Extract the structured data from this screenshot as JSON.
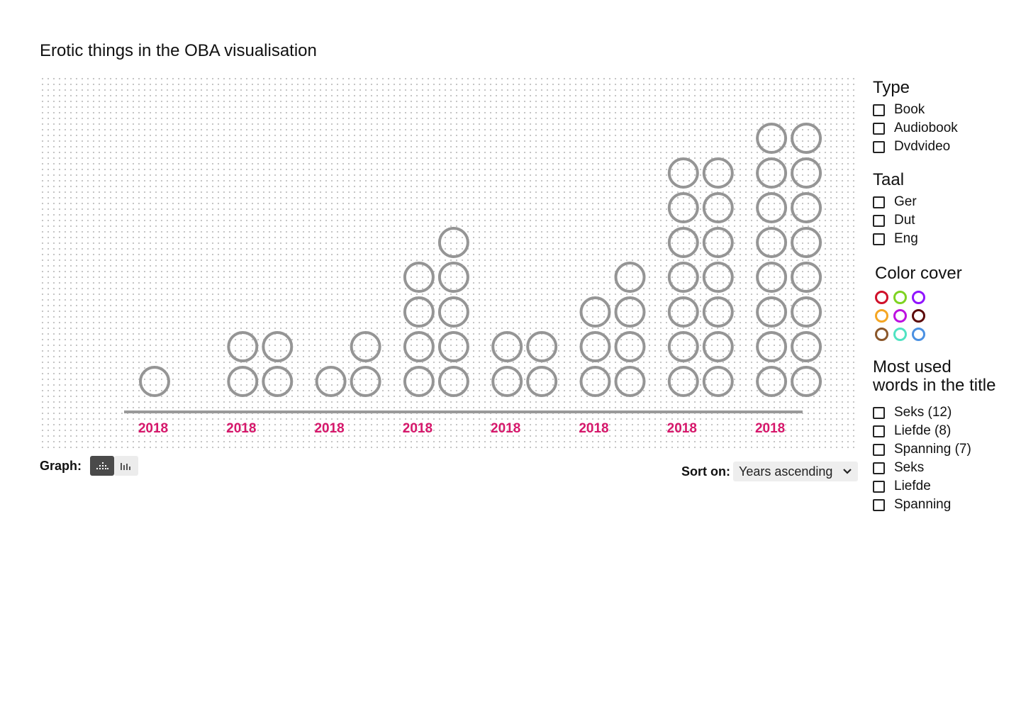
{
  "page": {
    "title": "Erotic things in the OBA visualisation"
  },
  "chart_data": {
    "type": "scatter",
    "description_note": "",
    "categories": [
      "2018",
      "2018",
      "2018",
      "2018",
      "2018",
      "2018",
      "2018",
      "2018"
    ],
    "series": [
      {
        "values": [
          1,
          2,
          1,
          4,
          2,
          3,
          7,
          8
        ]
      },
      {
        "values": [
          0,
          2,
          2,
          5,
          2,
          4,
          7,
          8
        ]
      }
    ],
    "marker_color": "#959595",
    "axis_color": "#999999",
    "tick_label_color": "#d6176b",
    "grid": true
  },
  "controls": {
    "graph_label": "Graph:",
    "graph_modes": [
      {
        "icon": "dot-plot-icon",
        "active": true
      },
      {
        "icon": "bar-chart-icon",
        "active": false
      }
    ],
    "sort_label": "Sort on:",
    "sort_value": "Years ascending"
  },
  "filters": {
    "type": {
      "title": "Type",
      "items": [
        "Book",
        "Audiobook",
        "Dvdvideo"
      ]
    },
    "taal": {
      "title": "Taal",
      "items": [
        "Ger",
        "Dut",
        "Eng"
      ]
    },
    "color_cover": {
      "title": "Color cover",
      "colors": [
        "#d0102a",
        "#7ed321",
        "#9013fe",
        "#f5a623",
        "#bd10e0",
        "#5c0a0a",
        "#8b572a",
        "#50e3c2",
        "#4a90e2"
      ]
    },
    "words": {
      "title_line1": "Most used",
      "title_line2": "words in the title",
      "items": [
        "Seks (12)",
        "Liefde (8)",
        "Spanning (7)",
        "Seks",
        "Liefde",
        "Spanning"
      ]
    }
  }
}
